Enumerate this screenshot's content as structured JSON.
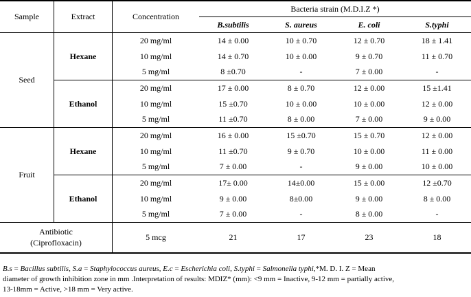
{
  "headers": {
    "sample": "Sample",
    "extract": "Extract",
    "concentration": "Concentration",
    "bacteria_strain": "Bacteria strain (M.D.I.Z *)",
    "strains": [
      "B.subtilis",
      "S. aureus",
      "E. coli",
      "S.typhi"
    ]
  },
  "rows": {
    "seed_label": "Seed",
    "fruit_label": "Fruit",
    "hexane": "Hexane",
    "ethanol": "Ethanol",
    "seed_hexane": [
      {
        "conc": "20 mg/ml",
        "v": [
          "14 ± 0.00",
          "10 ± 0.70",
          "12 ± 0.70",
          "18 ± 1.41"
        ]
      },
      {
        "conc": "10 mg/ml",
        "v": [
          "14 ± 0.70",
          "10 ± 0.00",
          "9 ± 0.70",
          "11 ± 0.70"
        ]
      },
      {
        "conc": "5 mg/ml",
        "v": [
          "8 ±0.70",
          "-",
          "7 ± 0.00",
          "-"
        ]
      }
    ],
    "seed_ethanol": [
      {
        "conc": "20 mg/ml",
        "v": [
          "17 ± 0.00",
          "8 ± 0.70",
          "12 ± 0.00",
          "15 ±1.41"
        ]
      },
      {
        "conc": "10 mg/ml",
        "v": [
          "15 ±0.70",
          "10 ± 0.00",
          "10 ± 0.00",
          "12 ± 0.00"
        ]
      },
      {
        "conc": "5 mg/ml",
        "v": [
          "11 ±0.70",
          "8 ± 0.00",
          "7 ± 0.00",
          "9 ± 0.00"
        ]
      }
    ],
    "fruit_hexane": [
      {
        "conc": "20 mg/ml",
        "v": [
          "16 ± 0.00",
          "15 ±0.70",
          "15 ± 0.70",
          "12 ± 0.00"
        ]
      },
      {
        "conc": "10 mg/ml",
        "v": [
          "11 ±0.70",
          "9 ± 0.70",
          "10 ± 0.00",
          "11 ± 0.00"
        ]
      },
      {
        "conc": "5 mg/ml",
        "v": [
          "7 ± 0.00",
          "-",
          "9 ± 0.00",
          "10 ± 0.00"
        ]
      }
    ],
    "fruit_ethanol": [
      {
        "conc": "20 mg/ml",
        "v": [
          "17± 0.00",
          "14±0.00",
          "15 ± 0.00",
          "12 ±0.70"
        ]
      },
      {
        "conc": "10 mg/ml",
        "v": [
          "9 ± 0.00",
          "8±0.00",
          "9 ± 0.00",
          "8 ± 0.00"
        ]
      },
      {
        "conc": "5 mg/ml",
        "v": [
          "7 ± 0.00",
          "-",
          "8 ± 0.00",
          "-"
        ]
      }
    ],
    "antibiotic": {
      "label_line1": "Antibiotic",
      "label_line2": "(Ciprofloxacin)",
      "conc": "5 mcg",
      "v": [
        "21",
        "17",
        "23",
        "18"
      ]
    }
  },
  "footnote": {
    "bs": "B.s",
    "bs_eq": " = ",
    "bs_name": "Bacillus subtilis",
    "sa": "S.a",
    "sa_name": "Staphylococcus aureus",
    "ec": "E.c",
    "ec_name": "Escherichia coli",
    "st": "S.typhi",
    "st_name": "Salmonella typhi",
    "tail1": ",*M. D. I. Z = Mean",
    "line2": "diameter of growth inhibition zone in mm .Interpretation of results: MDIZ* (mm): <9 mm = Inactive, 9-12 mm = partially active,",
    "line3": "13-18mm = Active, >18 mm = Very active."
  }
}
